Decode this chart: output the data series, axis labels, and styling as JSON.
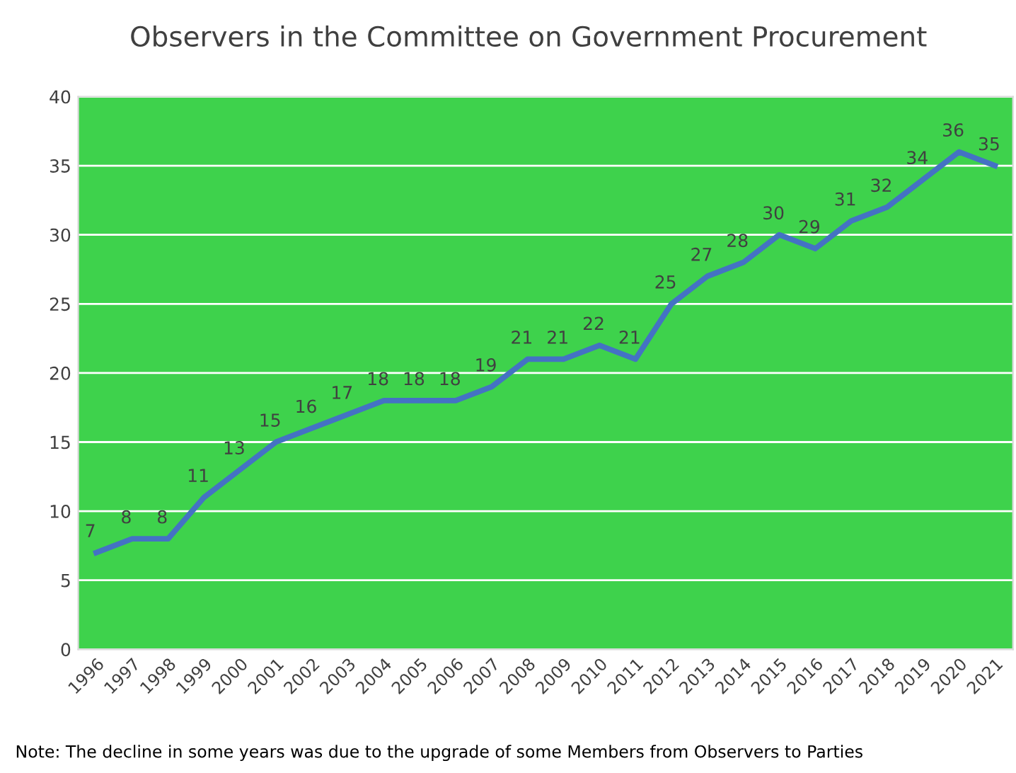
{
  "chart_data": {
    "type": "line",
    "title": "Observers in the Committee on Government Procurement",
    "categories": [
      "1996",
      "1997",
      "1998",
      "1999",
      "2000",
      "2001",
      "2002",
      "2003",
      "2004",
      "2005",
      "2006",
      "2007",
      "2008",
      "2009",
      "2010",
      "2011",
      "2012",
      "2013",
      "2014",
      "2015",
      "2016",
      "2017",
      "2018",
      "2019",
      "2020",
      "2021"
    ],
    "series": [
      {
        "color": "#4472c4",
        "values": [
          7,
          8,
          8,
          11,
          13,
          15,
          16,
          17,
          18,
          18,
          18,
          19,
          21,
          21,
          22,
          21,
          25,
          27,
          28,
          30,
          29,
          31,
          32,
          34,
          36,
          35
        ]
      }
    ],
    "ylim": [
      0,
      40
    ],
    "yticks": [
      0,
      5,
      10,
      15,
      20,
      25,
      30,
      35,
      40
    ],
    "grid": "y",
    "data_labels": true,
    "marker": "none",
    "line_style": "solid",
    "annotations": [
      "Note: The decline in some years was due to the upgrade of some Members from Observers to Parties"
    ]
  }
}
